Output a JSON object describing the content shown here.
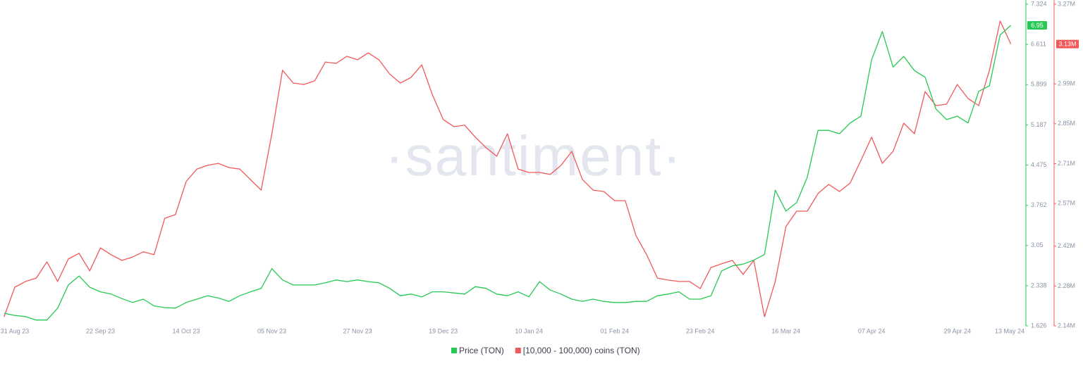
{
  "chart_data": {
    "type": "line",
    "watermark": "·santiment·",
    "categories": [
      null,
      "31 Aug 23",
      null,
      null,
      null,
      null,
      null,
      null,
      null,
      "22 Sep 23",
      null,
      null,
      null,
      null,
      null,
      null,
      null,
      "14 Oct 23",
      null,
      null,
      null,
      null,
      null,
      null,
      null,
      "05 Nov 23",
      null,
      null,
      null,
      null,
      null,
      null,
      null,
      "27 Nov 23",
      null,
      null,
      null,
      null,
      null,
      null,
      null,
      "19 Dec 23",
      null,
      null,
      null,
      null,
      null,
      null,
      null,
      "10 Jan 24",
      null,
      null,
      null,
      null,
      null,
      null,
      null,
      "01 Feb 24",
      null,
      null,
      null,
      null,
      null,
      null,
      null,
      "23 Feb 24",
      null,
      null,
      null,
      null,
      null,
      null,
      null,
      "16 Mar 24",
      null,
      null,
      null,
      null,
      null,
      null,
      null,
      "07 Apr 24",
      null,
      null,
      null,
      null,
      null,
      null,
      null,
      "29 Apr 24",
      null,
      null,
      null,
      null,
      "13 May 24"
    ],
    "ylim": [
      1.626,
      7.324
    ],
    "yticks": [
      1.626,
      2.338,
      3.05,
      3.762,
      4.475,
      5.187,
      5.899,
      6.611,
      7.324
    ],
    "y2lim": [
      2140000,
      3270000
    ],
    "y2ticks": [
      {
        "value": 2140000,
        "label": "2.14M"
      },
      {
        "value": 2280000,
        "label": "2.28M"
      },
      {
        "value": 2420000,
        "label": "2.42M"
      },
      {
        "value": 2570000,
        "label": "2.57M"
      },
      {
        "value": 2710000,
        "label": "2.71M"
      },
      {
        "value": 2850000,
        "label": "2.85M"
      },
      {
        "value": 2990000,
        "label": "2.99M"
      },
      {
        "value": 3270000,
        "label": "3.27M"
      }
    ],
    "series": [
      {
        "name": "Price (TON)",
        "color": "#26c953",
        "last_value_label": "6.95",
        "values": [
          1.85,
          1.81,
          1.79,
          1.73,
          1.73,
          1.94,
          2.35,
          2.51,
          2.31,
          2.23,
          2.19,
          2.11,
          2.04,
          2.1,
          1.98,
          1.95,
          1.94,
          2.04,
          2.1,
          2.16,
          2.12,
          2.06,
          2.16,
          2.23,
          2.29,
          2.64,
          2.44,
          2.35,
          2.35,
          2.35,
          2.39,
          2.44,
          2.41,
          2.44,
          2.41,
          2.39,
          2.29,
          2.16,
          2.19,
          2.14,
          2.23,
          2.23,
          2.21,
          2.19,
          2.32,
          2.29,
          2.19,
          2.16,
          2.23,
          2.14,
          2.41,
          2.26,
          2.19,
          2.1,
          2.06,
          2.1,
          2.06,
          2.04,
          2.04,
          2.06,
          2.06,
          2.16,
          2.19,
          2.23,
          2.1,
          2.1,
          2.16,
          2.6,
          2.69,
          2.72,
          2.79,
          2.89,
          4.03,
          3.66,
          3.81,
          4.26,
          5.09,
          5.09,
          5.03,
          5.22,
          5.34,
          6.34,
          6.84,
          6.21,
          6.4,
          6.15,
          6.03,
          5.47,
          5.28,
          5.34,
          5.22,
          5.78,
          5.88,
          6.78,
          6.95
        ]
      },
      {
        "name": "[10,000 - 100,000) coins (TON)",
        "color": "#f0595a",
        "axis": "y2",
        "last_value_label": "3.13M",
        "values": [
          2172000,
          2276000,
          2296000,
          2308000,
          2365000,
          2296000,
          2375000,
          2395000,
          2333000,
          2414000,
          2390000,
          2370000,
          2382000,
          2400000,
          2390000,
          2518000,
          2531000,
          2647000,
          2691000,
          2704000,
          2711000,
          2696000,
          2691000,
          2654000,
          2617000,
          2815000,
          3038000,
          2993000,
          2988000,
          3001000,
          3067000,
          3062000,
          3087000,
          3075000,
          3099000,
          3075000,
          3025000,
          2993000,
          3013000,
          3057000,
          2951000,
          2865000,
          2840000,
          2845000,
          2803000,
          2766000,
          2736000,
          2815000,
          2691000,
          2679000,
          2679000,
          2672000,
          2704000,
          2753000,
          2654000,
          2617000,
          2612000,
          2580000,
          2580000,
          2457000,
          2390000,
          2308000,
          2301000,
          2296000,
          2296000,
          2271000,
          2345000,
          2358000,
          2370000,
          2321000,
          2370000,
          2172000,
          2296000,
          2489000,
          2543000,
          2543000,
          2605000,
          2637000,
          2612000,
          2642000,
          2721000,
          2803000,
          2711000,
          2753000,
          2852000,
          2815000,
          2963000,
          2914000,
          2919000,
          2988000,
          2939000,
          2914000,
          3038000,
          3211000,
          3130000
        ]
      }
    ]
  }
}
